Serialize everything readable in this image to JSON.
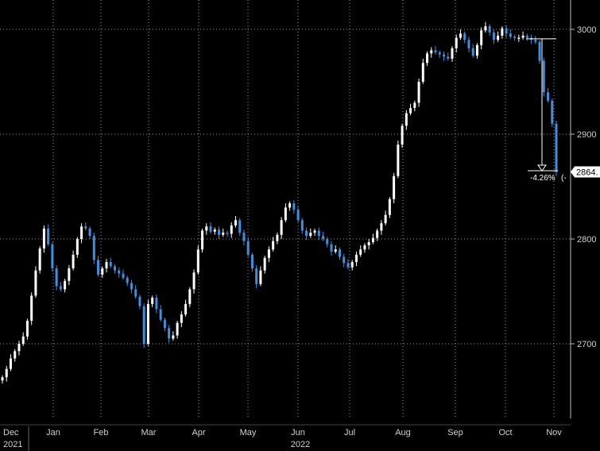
{
  "chart_data": {
    "type": "candlestick",
    "title": "",
    "xlabel": "",
    "ylabel": "",
    "ylim": [
      2645,
      3025
    ],
    "grid": true,
    "y_ticks": [
      2700,
      2800,
      2900,
      3000
    ],
    "x_ticks": [
      "Dec",
      "Jan",
      "Feb",
      "Mar",
      "Apr",
      "May",
      "Jun",
      "Jul",
      "Aug",
      "Sep",
      "Oct",
      "Nov"
    ],
    "year_labels": [
      "2021",
      "2022"
    ],
    "last_value_label": "2864.",
    "change_label": "-4.26%",
    "change_suffix": "(-",
    "reference_level": 2991,
    "colors": {
      "up": "#ffffff",
      "down": "#3f8fe0",
      "grid": "#9a9a9a",
      "background": "#000000"
    },
    "series": [
      {
        "values": [
          2668,
          2676,
          2686,
          2693,
          2700,
          2707,
          2722,
          2746,
          2770,
          2791,
          2810,
          2795,
          2772,
          2755,
          2752,
          2760,
          2772,
          2785,
          2800,
          2812,
          2810,
          2803,
          2780,
          2766,
          2772,
          2778,
          2774,
          2770,
          2767,
          2763,
          2758,
          2752,
          2745,
          2736,
          2700,
          2738,
          2744,
          2733,
          2723,
          2715,
          2705,
          2708,
          2720,
          2728,
          2738,
          2752,
          2768,
          2790,
          2808,
          2812,
          2807,
          2809,
          2804,
          2806,
          2805,
          2813,
          2818,
          2806,
          2798,
          2785,
          2772,
          2757,
          2770,
          2782,
          2790,
          2798,
          2804,
          2818,
          2830,
          2834,
          2828,
          2818,
          2808,
          2803,
          2806,
          2808,
          2803,
          2800,
          2795,
          2788,
          2790,
          2783,
          2777,
          2773,
          2778,
          2785,
          2790,
          2794,
          2797,
          2801,
          2808,
          2815,
          2823,
          2838,
          2860,
          2890,
          2908,
          2920,
          2925,
          2930,
          2950,
          2968,
          2977,
          2980,
          2978,
          2976,
          2974,
          2972,
          2982,
          2992,
          2996,
          2990,
          2982,
          2975,
          2985,
          2999,
          3003,
          2997,
          2990,
          2994,
          3001,
          2996,
          2993,
          2992,
          2992,
          2994,
          2992,
          2990,
          2988,
          2970,
          2940,
          2932,
          2910,
          2864
        ]
      }
    ]
  }
}
